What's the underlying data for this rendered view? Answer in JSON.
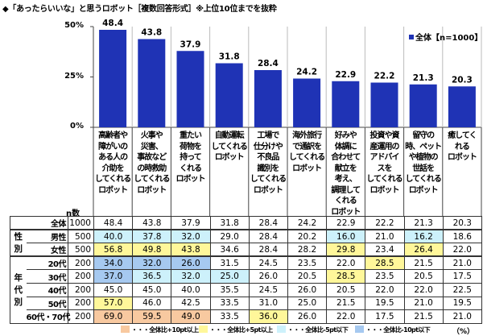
{
  "title": "◆「あったらいいな」と思うロボット［複数回答形式］※上位10位までを抜粋",
  "chart_data": {
    "type": "bar",
    "categories": [
      "高齢者や\n障がいの\nある人の\n介助を\nしてくれる\nロボット",
      "火事や\n災害、\n事故など\nの時救助\nしてくれる\nロボット",
      "重たい\n荷物を\n持って\nくれる\nロボット",
      "自動運転\nしてくれる\nロボット",
      "工場で\n仕分けや\n不良品\n識別を\nしてくれる\nロボット",
      "海外旅行\nで通訳を\nしてくれる\nロボット",
      "好みや\n体調に\n合わせて\n献立を\n考え、\n調理して\nくれる\nロボット",
      "投資や資\n産運用の\nアドバイ\nスを\nしてくれる\nロボット",
      "留守の\n時、ペット\nや植物の\n世話を\nしてくれる\nロボット",
      "癒してく\nれる\nロボット"
    ],
    "series": [
      {
        "name": "全体【n=1000】",
        "values": [
          48.4,
          43.8,
          37.9,
          31.8,
          28.4,
          24.2,
          22.9,
          22.2,
          21.3,
          20.3
        ]
      }
    ],
    "yticks": [
      "50%",
      "25%",
      "0%"
    ],
    "ylim": [
      0,
      50
    ],
    "bar_color": "#1f33b5",
    "legend": "top-right"
  },
  "table": {
    "n_header": "n数",
    "rows": [
      {
        "group": "",
        "label": "全体",
        "n": "1000",
        "values": [
          "48.4",
          "43.8",
          "37.9",
          "31.8",
          "28.4",
          "24.2",
          "22.9",
          "22.2",
          "21.3",
          "20.3"
        ]
      },
      {
        "group": "性別",
        "label": "男性",
        "n": "500",
        "values": [
          "40.0",
          "37.8",
          "32.0",
          "29.0",
          "28.4",
          "20.2",
          "16.0",
          "21.0",
          "16.2",
          "18.6"
        ]
      },
      {
        "group": "",
        "label": "女性",
        "n": "500",
        "values": [
          "56.8",
          "49.8",
          "43.8",
          "34.6",
          "28.4",
          "28.2",
          "29.8",
          "23.4",
          "26.4",
          "22.0"
        ]
      },
      {
        "group": "年代別",
        "label": "20代",
        "n": "200",
        "values": [
          "34.0",
          "32.0",
          "26.0",
          "31.5",
          "24.5",
          "23.5",
          "22.0",
          "28.5",
          "21.5",
          "21.0"
        ]
      },
      {
        "group": "",
        "label": "30代",
        "n": "200",
        "values": [
          "37.0",
          "36.5",
          "32.0",
          "25.0",
          "26.0",
          "20.5",
          "28.5",
          "23.5",
          "20.5",
          "17.5"
        ]
      },
      {
        "group": "",
        "label": "40代",
        "n": "200",
        "values": [
          "45.0",
          "45.0",
          "40.0",
          "35.5",
          "24.5",
          "26.0",
          "20.5",
          "22.0",
          "22.0",
          "22.5"
        ]
      },
      {
        "group": "",
        "label": "50代",
        "n": "200",
        "values": [
          "57.0",
          "46.0",
          "42.5",
          "33.5",
          "31.0",
          "25.0",
          "21.5",
          "19.5",
          "21.0",
          "19.5"
        ]
      },
      {
        "group": "",
        "label": "60代・70代",
        "n": "200",
        "values": [
          "69.0",
          "59.5",
          "49.0",
          "33.5",
          "36.0",
          "26.0",
          "22.0",
          "17.5",
          "21.5",
          "21.0"
        ]
      }
    ]
  },
  "highlight_legend": [
    {
      "label": "・・・全体比+10pt以上",
      "color": "#f8c9a0",
      "threshold": 10
    },
    {
      "label": "・・・全体比+5pt以上",
      "color": "#fff79a",
      "threshold": 5
    },
    {
      "label": "・・・全体比-5pt以下",
      "color": "#cdf1fb",
      "threshold": -5
    },
    {
      "label": "・・・全体比-10pt以下",
      "color": "#a6c9f0",
      "threshold": -10
    }
  ],
  "unit": "（%）"
}
